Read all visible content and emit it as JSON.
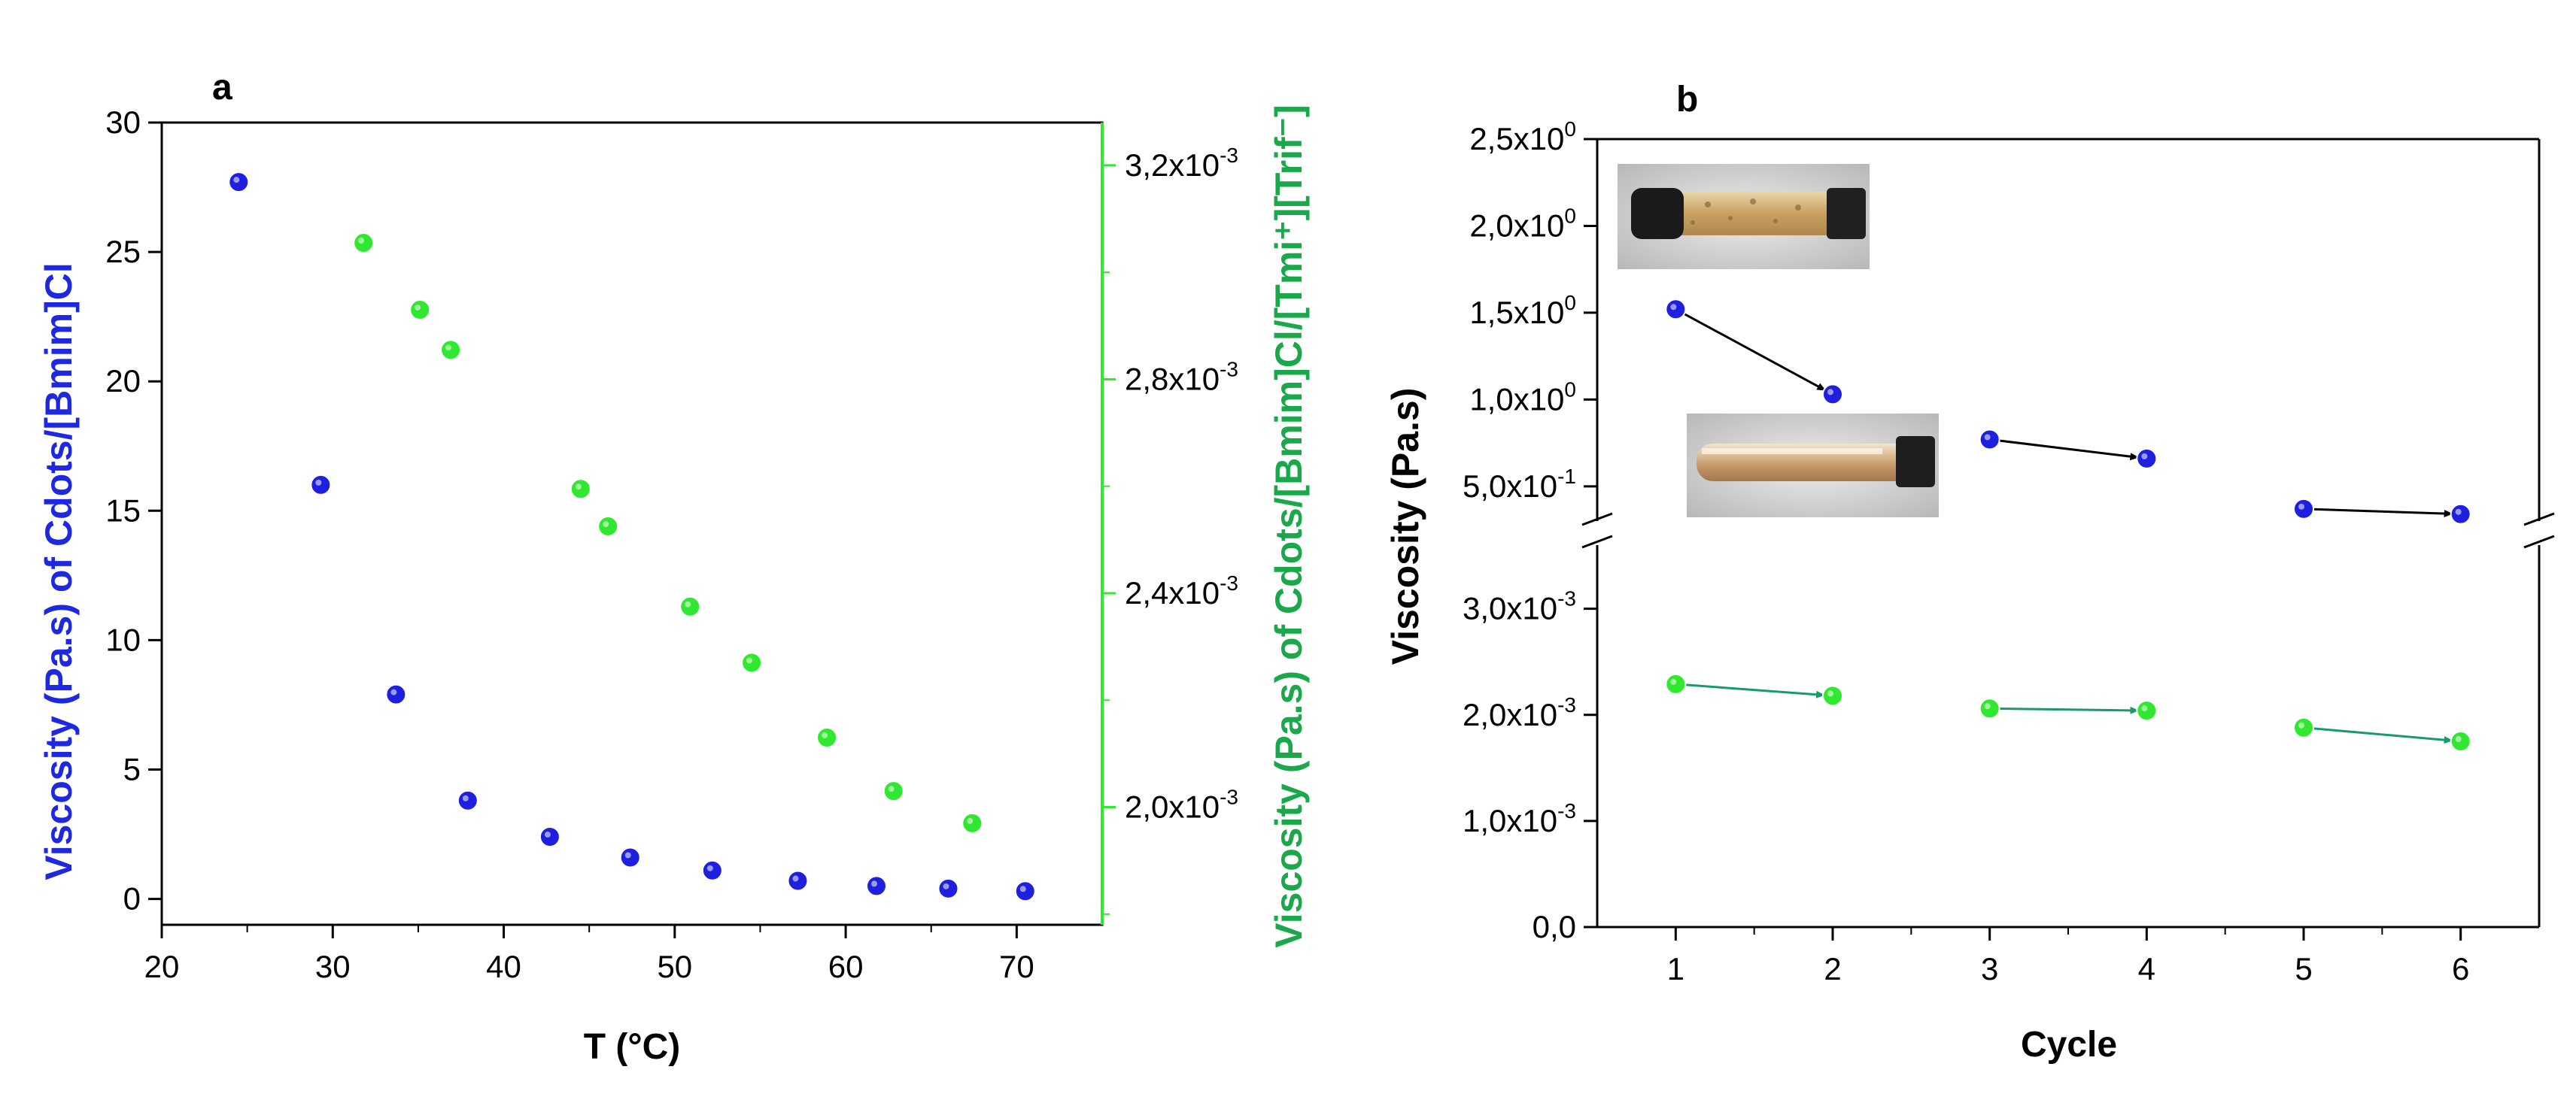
{
  "colors": {
    "blue": "#1f1fe0",
    "green": "#2fe82f",
    "axis_label_green": "#1aa84a",
    "axis_label_blue": "#1e28e0",
    "arrow_teal": "#1a9a6a"
  },
  "chart_data": [
    {
      "panel_label": "a",
      "type": "scatter",
      "xlabel": "T (°C)",
      "ylabel_left": "Viscosity (Pa.s) of Cdots/[Bmim]Cl",
      "ylabel_right": "Viscosity (Pa.s) of Cdots/[Bmim]Cl/[Tmi⁺][Trif⁻]",
      "xlim": [
        20,
        75
      ],
      "ylim_left": [
        -1,
        30
      ],
      "ylim_right": [
        0.00178,
        0.00328
      ],
      "x_ticks": [
        "20",
        "30",
        "40",
        "50",
        "60",
        "70"
      ],
      "y_left_ticks": [
        "0",
        "5",
        "10",
        "15",
        "20",
        "25",
        "30"
      ],
      "y_right_ticks": [
        {
          "base": "2,0x10",
          "exp": "-3"
        },
        {
          "base": "2,4x10",
          "exp": "-3"
        },
        {
          "base": "2,8x10",
          "exp": "-3"
        },
        {
          "base": "3,2x10",
          "exp": "-3"
        }
      ],
      "series": [
        {
          "axis": "left",
          "color": "blue",
          "x": [
            24.5,
            29.3,
            33.7,
            37.9,
            42.7,
            47.4,
            52.2,
            57.2,
            61.8,
            66.0,
            70.5
          ],
          "y": [
            27.7,
            16.0,
            7.9,
            3.8,
            2.4,
            1.6,
            1.1,
            0.7,
            0.5,
            0.4,
            0.3
          ]
        },
        {
          "axis": "right",
          "color": "green",
          "x": [
            31.8,
            35.1,
            36.9,
            44.5,
            46.1,
            50.9,
            54.5,
            58.9,
            62.8,
            67.4
          ],
          "y": [
            0.003055,
            0.00293,
            0.002855,
            0.002595,
            0.002525,
            0.002375,
            0.00227,
            0.00213,
            0.00203,
            0.00197
          ]
        }
      ]
    },
    {
      "panel_label": "b",
      "type": "line",
      "xlabel": "Cycle",
      "ylabel": "Viscosity (Pa.s)",
      "xlim": [
        0.5,
        6.5
      ],
      "x_ticks": [
        "1",
        "2",
        "3",
        "4",
        "5",
        "6"
      ],
      "broken_axis": true,
      "upper_ylim": [
        0.3,
        2.5
      ],
      "lower_ylim": [
        0,
        0.0036
      ],
      "y_upper_ticks": [
        {
          "base": "5,0x10",
          "exp": "-1",
          "value": 0.5
        },
        {
          "base": "1,0x10",
          "exp": "0",
          "value": 1.0
        },
        {
          "base": "1,5x10",
          "exp": "0",
          "value": 1.5
        },
        {
          "base": "2,0x10",
          "exp": "0",
          "value": 2.0
        },
        {
          "base": "2,5x10",
          "exp": "0",
          "value": 2.5
        }
      ],
      "y_lower_ticks": [
        {
          "base": "0,0",
          "exp": "",
          "value": 0
        },
        {
          "base": "1,0x10",
          "exp": "-3",
          "value": 0.001
        },
        {
          "base": "2,0x10",
          "exp": "-3",
          "value": 0.002
        },
        {
          "base": "3,0x10",
          "exp": "-3",
          "value": 0.003
        }
      ],
      "series": [
        {
          "color": "blue",
          "region": "upper",
          "x": [
            1,
            2,
            3,
            4,
            5,
            6
          ],
          "y": [
            1.52,
            1.03,
            0.77,
            0.66,
            0.37,
            0.34
          ]
        },
        {
          "color": "green",
          "region": "lower",
          "x": [
            1,
            2,
            3,
            4,
            5,
            6
          ],
          "y": [
            0.00229,
            0.00218,
            0.00206,
            0.00204,
            0.00188,
            0.00175
          ]
        }
      ],
      "insets": [
        "vial-image-dark",
        "vial-image-light"
      ]
    }
  ]
}
